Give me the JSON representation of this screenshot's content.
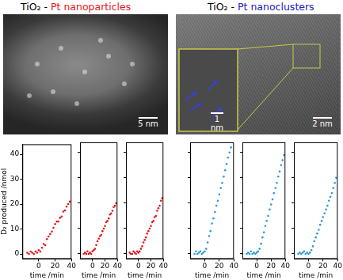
{
  "figure": {
    "panels": [
      {
        "title_prefix": "TiO₂ - ",
        "title": "Pt nanoparticles",
        "color": "#e8141b",
        "scale_bars": [
          "5 nm"
        ]
      },
      {
        "title_prefix": "TiO₂ - ",
        "title": "Pt nanoclusters",
        "color": "#2020c8",
        "scale_bars": [
          "2 nm",
          "1 nm"
        ]
      }
    ]
  },
  "chart_data": [
    {
      "type": "scatter",
      "x_label": "time /min",
      "y_label": "D₂ produced /nmol",
      "tick_labels": true,
      "grid": false,
      "x": [
        -14,
        -12,
        -10,
        -8,
        -6,
        -4,
        -2,
        0,
        2,
        4,
        6,
        8,
        10,
        12,
        14,
        16,
        18,
        20,
        22,
        24,
        26,
        28,
        30,
        32,
        34,
        36,
        38
      ],
      "series": [
        {
          "color": "#e0191b",
          "marker": "circle",
          "values": [
            0.5,
            0,
            1,
            0.5,
            0,
            1,
            0.5,
            1.5,
            1,
            2.5,
            4,
            3.5,
            6,
            7,
            8,
            9,
            10.5,
            12,
            13,
            13,
            14.5,
            15,
            17,
            17.5,
            19,
            20,
            21
          ]
        }
      ],
      "xlim": [
        -20,
        40
      ],
      "xticks": [
        0,
        20,
        40
      ],
      "ylim": [
        -2,
        44
      ],
      "yticks": [
        0,
        10,
        20,
        30,
        40
      ]
    },
    {
      "type": "scatter",
      "x_label": "time /min",
      "tick_labels": "x",
      "grid": false,
      "x": [
        -14,
        -12,
        -10,
        -8,
        -6,
        -4,
        -2,
        0,
        2,
        4,
        6,
        8,
        10,
        12,
        14,
        16,
        18,
        20,
        22,
        24,
        26,
        28,
        30,
        32,
        34,
        36,
        38
      ],
      "series": [
        {
          "color": "#e0191b",
          "marker": "circle",
          "values": [
            0,
            0.5,
            0,
            1,
            0,
            0.5,
            0,
            1,
            1.5,
            2,
            3.5,
            5,
            6,
            7,
            7.5,
            9,
            10,
            11,
            12.5,
            13,
            14,
            15.5,
            16,
            17,
            18.5,
            19,
            20
          ]
        }
      ],
      "xlim": [
        -20,
        40
      ],
      "xticks": [
        0,
        20,
        40
      ],
      "ylim": [
        -2,
        44
      ],
      "yticks": [
        0,
        10,
        20,
        30,
        40
      ]
    },
    {
      "type": "scatter",
      "x_label": "time /min",
      "tick_labels": "x",
      "grid": false,
      "x": [
        -14,
        -12,
        -10,
        -8,
        -6,
        -4,
        -2,
        0,
        2,
        4,
        6,
        8,
        10,
        12,
        14,
        16,
        18,
        20,
        22,
        24,
        26,
        28,
        30,
        32,
        34,
        36,
        38
      ],
      "series": [
        {
          "color": "#e0191b",
          "marker": "circle",
          "values": [
            0.5,
            0,
            0,
            1,
            0.5,
            0,
            1,
            0.5,
            1,
            2,
            3,
            4.5,
            5.5,
            6.5,
            8,
            9,
            10,
            11,
            12.5,
            13,
            14.5,
            15,
            17,
            18,
            19,
            21,
            22
          ]
        }
      ],
      "xlim": [
        -20,
        40
      ],
      "xticks": [
        0,
        20,
        40
      ],
      "ylim": [
        -2,
        44
      ],
      "yticks": [
        0,
        10,
        20,
        30,
        40
      ]
    },
    {
      "type": "scatter",
      "x_label": "time /min",
      "tick_labels": "x",
      "grid": false,
      "x": [
        -14,
        -12,
        -10,
        -8,
        -6,
        -4,
        -2,
        0,
        2,
        4,
        6,
        8,
        10,
        12,
        14,
        16,
        18,
        20,
        22,
        24,
        26,
        28,
        30,
        32,
        34,
        36,
        38
      ],
      "series": [
        {
          "color": "#2b9ad6",
          "marker": "circle",
          "values": [
            0,
            1,
            0,
            0.5,
            1,
            0,
            0.5,
            1,
            2,
            4.5,
            7,
            9,
            12,
            14,
            16.5,
            19,
            21,
            23.5,
            26,
            28,
            30.5,
            33,
            35.5,
            38,
            40,
            42,
            44
          ]
        }
      ],
      "xlim": [
        -20,
        40
      ],
      "xticks": [
        0,
        20,
        40
      ],
      "ylim": [
        -2,
        44
      ],
      "yticks": [
        0,
        10,
        20,
        30,
        40
      ]
    },
    {
      "type": "scatter",
      "x_label": "time /min",
      "tick_labels": "x",
      "grid": false,
      "x": [
        -14,
        -12,
        -10,
        -8,
        -6,
        -4,
        -2,
        0,
        2,
        4,
        6,
        8,
        10,
        12,
        14,
        16,
        18,
        20,
        22,
        24,
        26,
        28,
        30,
        32,
        34,
        36,
        38
      ],
      "series": [
        {
          "color": "#2b9ad6",
          "marker": "circle",
          "values": [
            0,
            0.5,
            0,
            1,
            0,
            0.5,
            0,
            0.5,
            1,
            2,
            4,
            6.5,
            8.5,
            11,
            13,
            15,
            17.5,
            19.5,
            21.5,
            24,
            26,
            28,
            30.5,
            32.5,
            35,
            37,
            39
          ]
        }
      ],
      "xlim": [
        -20,
        40
      ],
      "xticks": [
        0,
        20,
        40
      ],
      "ylim": [
        -2,
        44
      ],
      "yticks": [
        0,
        10,
        20,
        30,
        40
      ]
    },
    {
      "type": "scatter",
      "x_label": "time /min",
      "tick_labels": "x",
      "grid": false,
      "x": [
        -14,
        -12,
        -10,
        -8,
        -6,
        -4,
        -2,
        0,
        2,
        4,
        6,
        8,
        10,
        12,
        14,
        16,
        18,
        20,
        22,
        24,
        26,
        28,
        30,
        32,
        34,
        36,
        38
      ],
      "series": [
        {
          "color": "#2b9ad6",
          "marker": "circle",
          "values": [
            0,
            0.5,
            0,
            0.5,
            1,
            0,
            0.5,
            0,
            0.5,
            1.5,
            3,
            5,
            6.5,
            8,
            9.5,
            11.5,
            13,
            14.5,
            16,
            17.5,
            19,
            21,
            22.5,
            24,
            26,
            28,
            30
          ]
        }
      ],
      "xlim": [
        -20,
        40
      ],
      "xticks": [
        0,
        20,
        40
      ],
      "ylim": [
        -2,
        44
      ],
      "yticks": [
        0,
        10,
        20,
        30,
        40
      ]
    }
  ]
}
